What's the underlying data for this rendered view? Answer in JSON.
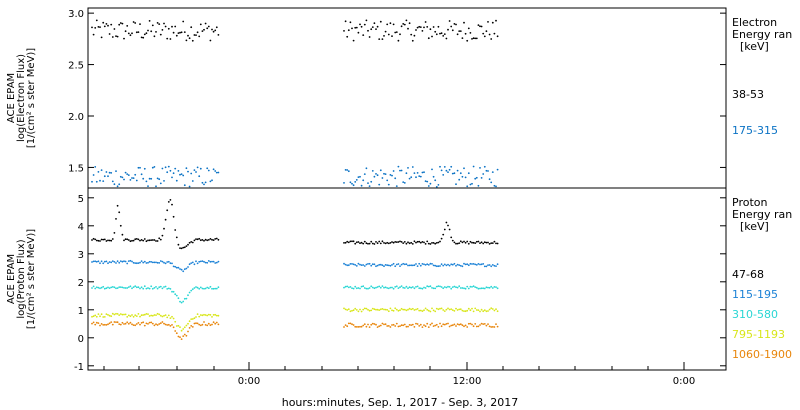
{
  "chart_data": [
    {
      "type": "scatter",
      "panel": "electron",
      "ylabel_lines": [
        "ACE EPAM",
        "log(Electron Flux)",
        "[1/(cm² s ster MeV)]"
      ],
      "ylim": [
        1.3,
        3.05
      ],
      "yticks": [
        "1.5",
        "2.0",
        "2.5",
        "3.0"
      ],
      "legend_title": [
        "Electron",
        "Energy ran",
        "[keV]"
      ],
      "series": [
        {
          "name": "38-53",
          "color": "#000000",
          "level": 2.83,
          "noise": 0.1
        },
        {
          "name": "175-315",
          "color": "#0a72c4",
          "level": 1.41,
          "noise": 0.1
        }
      ]
    },
    {
      "type": "scatter",
      "panel": "proton",
      "ylabel_lines": [
        "ACE EPAM",
        "log(Proton Flux)",
        "[1/(cm² s ster MeV)]"
      ],
      "ylim": [
        -1.15,
        5.35
      ],
      "yticks": [
        "-1",
        "0",
        "1",
        "2",
        "3",
        "4",
        "5"
      ],
      "legend_title": [
        "Proton",
        "Energy ran",
        "[keV]"
      ],
      "series": [
        {
          "name": "47-68",
          "color": "#000000",
          "level": 3.45,
          "noise": 0.05,
          "segA_level": 3.5,
          "segB_level": 3.4
        },
        {
          "name": "115-195",
          "color": "#1c82d6",
          "level": 2.65,
          "noise": 0.05,
          "segA_level": 2.7,
          "segB_level": 2.6
        },
        {
          "name": "310-580",
          "color": "#2ad6d4",
          "level": 1.8,
          "noise": 0.05,
          "segA_level": 1.8,
          "segB_level": 1.8
        },
        {
          "name": "795-1193",
          "color": "#d8e61a",
          "level": 0.9,
          "noise": 0.06,
          "segA_level": 0.8,
          "segB_level": 1.0
        },
        {
          "name": "1060-1900",
          "color": "#e8860c",
          "level": 0.45,
          "noise": 0.07,
          "segA_level": 0.5,
          "segB_level": 0.45
        }
      ]
    }
  ],
  "x_axis": {
    "tick_labels": [
      "0:00",
      "12:00",
      "0:00"
    ],
    "xlabel": "hours:minutes, Sep.  1, 2017 - Sep.  3, 2017"
  }
}
